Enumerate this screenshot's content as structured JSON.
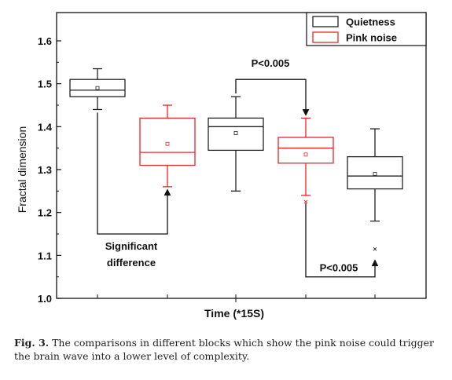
{
  "chart_data": {
    "type": "box",
    "xlabel": "Time (*15S)",
    "ylabel": "Fractal dimension",
    "ylim": [
      1.0,
      1.6
    ],
    "yticks": [
      "1.0",
      "1.1",
      "1.2",
      "1.3",
      "1.4",
      "1.5",
      "1.6"
    ],
    "grid": false,
    "legend_position": "top-right",
    "series": [
      {
        "name": "Quietness",
        "color": "#222222"
      },
      {
        "name": "Pink noise",
        "color": "#e8262b"
      }
    ],
    "boxes": [
      {
        "series": "Quietness",
        "whisker_low": 1.44,
        "q1": 1.47,
        "median": 1.485,
        "q3": 1.51,
        "whisker_high": 1.535,
        "mean": 1.49
      },
      {
        "series": "Pink noise",
        "whisker_low": 1.26,
        "q1": 1.31,
        "median": 1.34,
        "q3": 1.42,
        "whisker_high": 1.45,
        "mean": 1.36
      },
      {
        "series": "Quietness",
        "whisker_low": 1.25,
        "q1": 1.345,
        "median": 1.4,
        "q3": 1.42,
        "whisker_high": 1.47,
        "mean": 1.385
      },
      {
        "series": "Pink noise",
        "whisker_low": 1.24,
        "q1": 1.315,
        "median": 1.35,
        "q3": 1.375,
        "whisker_high": 1.42,
        "mean": 1.335,
        "outliers": [
          1.225
        ]
      },
      {
        "series": "Quietness",
        "whisker_low": 1.18,
        "q1": 1.255,
        "median": 1.285,
        "q3": 1.33,
        "whisker_high": 1.395,
        "mean": 1.29,
        "outliers": [
          1.115
        ]
      }
    ],
    "annotations": [
      {
        "text": "Significant difference",
        "lines": [
          "Significant",
          "difference"
        ]
      },
      {
        "text": "P<0.005"
      },
      {
        "text": "P<0.005"
      }
    ]
  },
  "caption": {
    "label": "Fig. 3.",
    "text": " The comparisons in different blocks which show the pink noise could trigger the brain wave into a lower level of complexity."
  }
}
